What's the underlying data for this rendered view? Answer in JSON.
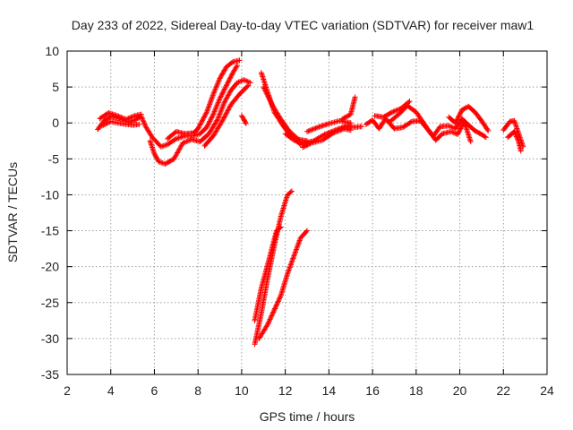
{
  "chart_data": {
    "type": "scatter",
    "title": "Day 233 of 2022, Sidereal Day-to-day VTEC variation (SDTVAR) for receiver maw1",
    "xlabel": "GPS time / hours",
    "ylabel": "SDTVAR / TECUs",
    "xlim": [
      2,
      24
    ],
    "ylim": [
      -35,
      10
    ],
    "xticks": [
      2,
      4,
      6,
      8,
      10,
      12,
      14,
      16,
      18,
      20,
      22,
      24
    ],
    "yticks": [
      -35,
      -30,
      -25,
      -20,
      -15,
      -10,
      -5,
      0,
      5,
      10
    ],
    "grid": true,
    "marker": "+",
    "series": [
      {
        "name": "SDTVAR",
        "color": "#ff0000",
        "segments": [
          [
            [
              3.4,
              -0.9
            ],
            [
              3.7,
              0.3
            ],
            [
              4.0,
              0.9
            ],
            [
              4.4,
              0.6
            ],
            [
              4.8,
              0.1
            ],
            [
              5.1,
              0.4
            ],
            [
              5.4,
              0.9
            ],
            [
              5.6,
              -0.5
            ],
            [
              5.9,
              -2.0
            ],
            [
              6.3,
              -3.3
            ],
            [
              6.6,
              -3.0
            ],
            [
              7.0,
              -2.2
            ],
            [
              7.4,
              -1.8
            ],
            [
              7.8,
              -1.8
            ],
            [
              8.1,
              -1.5
            ],
            [
              8.4,
              -0.6
            ],
            [
              8.7,
              1.2
            ],
            [
              9.0,
              3.4
            ],
            [
              9.3,
              5.2
            ],
            [
              9.6,
              7.0
            ],
            [
              9.8,
              8.0
            ]
          ],
          [
            [
              3.5,
              0.6
            ],
            [
              3.9,
              1.4
            ],
            [
              4.3,
              1.0
            ],
            [
              4.7,
              0.5
            ],
            [
              5.1,
              1.0
            ],
            [
              5.4,
              1.2
            ]
          ],
          [
            [
              3.6,
              -0.4
            ],
            [
              4.0,
              0.2
            ],
            [
              4.5,
              -0.1
            ],
            [
              5.0,
              -0.3
            ],
            [
              5.3,
              -0.2
            ]
          ],
          [
            [
              5.8,
              -2.5
            ],
            [
              6.0,
              -4.3
            ],
            [
              6.2,
              -5.4
            ],
            [
              6.5,
              -5.7
            ],
            [
              6.9,
              -5.0
            ],
            [
              7.3,
              -2.8
            ],
            [
              7.7,
              -2.3
            ],
            [
              8.1,
              -2.6
            ],
            [
              8.5,
              -1.5
            ],
            [
              8.9,
              0.5
            ],
            [
              9.2,
              2.8
            ],
            [
              9.5,
              4.5
            ],
            [
              9.8,
              5.6
            ],
            [
              10.1,
              6.0
            ],
            [
              10.4,
              5.6
            ]
          ],
          [
            [
              6.6,
              -2.2
            ],
            [
              7.0,
              -1.2
            ],
            [
              7.4,
              -1.5
            ],
            [
              7.8,
              -1.4
            ],
            [
              8.0,
              -0.8
            ],
            [
              8.4,
              1.5
            ],
            [
              8.7,
              4.0
            ],
            [
              9.0,
              6.2
            ],
            [
              9.3,
              7.8
            ],
            [
              9.6,
              8.5
            ],
            [
              9.9,
              8.7
            ]
          ],
          [
            [
              8.3,
              -3.2
            ],
            [
              8.7,
              -1.8
            ],
            [
              9.1,
              0.2
            ],
            [
              9.5,
              2.5
            ],
            [
              9.9,
              4.0
            ],
            [
              10.3,
              5.2
            ]
          ],
          [
            [
              10.0,
              1.0
            ],
            [
              10.1,
              0.5
            ],
            [
              10.2,
              -0.1
            ]
          ],
          [
            [
              10.9,
              7.0
            ],
            [
              11.2,
              4.2
            ],
            [
              11.5,
              1.5
            ],
            [
              11.9,
              -0.4
            ],
            [
              12.3,
              -2.0
            ],
            [
              12.7,
              -3.0
            ],
            [
              13.0,
              -3.0
            ]
          ],
          [
            [
              11.0,
              5.0
            ],
            [
              11.4,
              2.5
            ],
            [
              11.8,
              0.5
            ],
            [
              12.2,
              -1.2
            ],
            [
              12.6,
              -2.3
            ],
            [
              13.0,
              -2.5
            ]
          ],
          [
            [
              12.0,
              -1.5
            ],
            [
              12.4,
              -2.4
            ],
            [
              12.9,
              -2.8
            ],
            [
              13.3,
              -2.5
            ],
            [
              13.8,
              -1.6
            ],
            [
              14.3,
              -1.0
            ],
            [
              14.8,
              -0.4
            ],
            [
              15.2,
              -0.6
            ],
            [
              15.5,
              -0.5
            ]
          ],
          [
            [
              12.8,
              -3.4
            ],
            [
              13.2,
              -2.8
            ],
            [
              13.7,
              -2.4
            ],
            [
              14.2,
              -1.4
            ],
            [
              14.7,
              -0.8
            ],
            [
              15.0,
              -1.0
            ]
          ],
          [
            [
              13.0,
              -1.2
            ],
            [
              13.5,
              -0.6
            ],
            [
              14.0,
              -0.1
            ],
            [
              14.5,
              0.3
            ],
            [
              15.0,
              0.0
            ]
          ],
          [
            [
              14.6,
              0.5
            ],
            [
              15.0,
              1.2
            ],
            [
              15.2,
              3.6
            ]
          ],
          [
            [
              15.7,
              -0.2
            ],
            [
              16.0,
              0.4
            ],
            [
              16.3,
              -0.8
            ],
            [
              16.6,
              0.6
            ],
            [
              17.0,
              -0.8
            ],
            [
              17.4,
              -0.6
            ],
            [
              17.8,
              0.2
            ],
            [
              18.2,
              0.3
            ],
            [
              18.5,
              -0.8
            ],
            [
              18.8,
              -1.8
            ],
            [
              19.1,
              -0.5
            ],
            [
              19.5,
              -0.4
            ],
            [
              19.8,
              -0.8
            ],
            [
              20.1,
              0.6
            ],
            [
              20.4,
              -0.3
            ],
            [
              20.7,
              -1.1
            ],
            [
              21.0,
              -1.6
            ],
            [
              21.2,
              -2.0
            ]
          ],
          [
            [
              16.8,
              0.2
            ],
            [
              17.2,
              1.2
            ],
            [
              17.6,
              2.4
            ],
            [
              18.0,
              1.5
            ],
            [
              18.3,
              0.2
            ],
            [
              18.6,
              -1.2
            ],
            [
              18.9,
              -2.4
            ],
            [
              19.2,
              -1.5
            ],
            [
              19.6,
              -1.2
            ],
            [
              19.9,
              -1.6
            ],
            [
              20.2,
              0.2
            ],
            [
              20.5,
              -2.6
            ]
          ],
          [
            [
              16.1,
              1.0
            ],
            [
              16.5,
              0.8
            ],
            [
              16.9,
              1.5
            ],
            [
              17.3,
              2.0
            ],
            [
              17.7,
              3.0
            ]
          ],
          [
            [
              19.5,
              0.8
            ],
            [
              19.8,
              0.0
            ],
            [
              20.1,
              1.8
            ],
            [
              20.4,
              2.3
            ],
            [
              20.7,
              1.5
            ],
            [
              21.0,
              0.3
            ],
            [
              21.3,
              -1.1
            ]
          ],
          [
            [
              22.0,
              -1.0
            ],
            [
              22.3,
              0.2
            ],
            [
              22.5,
              0.3
            ],
            [
              22.7,
              -1.5
            ],
            [
              22.9,
              -3.3
            ]
          ],
          [
            [
              22.2,
              -2.0
            ],
            [
              22.5,
              -1.2
            ],
            [
              22.7,
              -2.6
            ],
            [
              22.8,
              -3.9
            ]
          ],
          [
            [
              10.6,
              -30.8
            ],
            [
              10.9,
              -26.5
            ],
            [
              11.2,
              -21.5
            ],
            [
              11.5,
              -17.0
            ],
            [
              11.8,
              -13.0
            ],
            [
              12.1,
              -10.0
            ],
            [
              12.3,
              -9.5
            ]
          ],
          [
            [
              10.6,
              -27.5
            ],
            [
              10.9,
              -23.0
            ],
            [
              11.3,
              -18.5
            ],
            [
              11.6,
              -15.0
            ],
            [
              11.8,
              -14.5
            ]
          ],
          [
            [
              10.8,
              -30.0
            ],
            [
              11.2,
              -28.0
            ],
            [
              11.5,
              -26.0
            ],
            [
              11.8,
              -24.0
            ],
            [
              12.1,
              -21.0
            ],
            [
              12.4,
              -18.5
            ],
            [
              12.7,
              -16.0
            ],
            [
              13.0,
              -15.0
            ]
          ]
        ]
      }
    ]
  }
}
